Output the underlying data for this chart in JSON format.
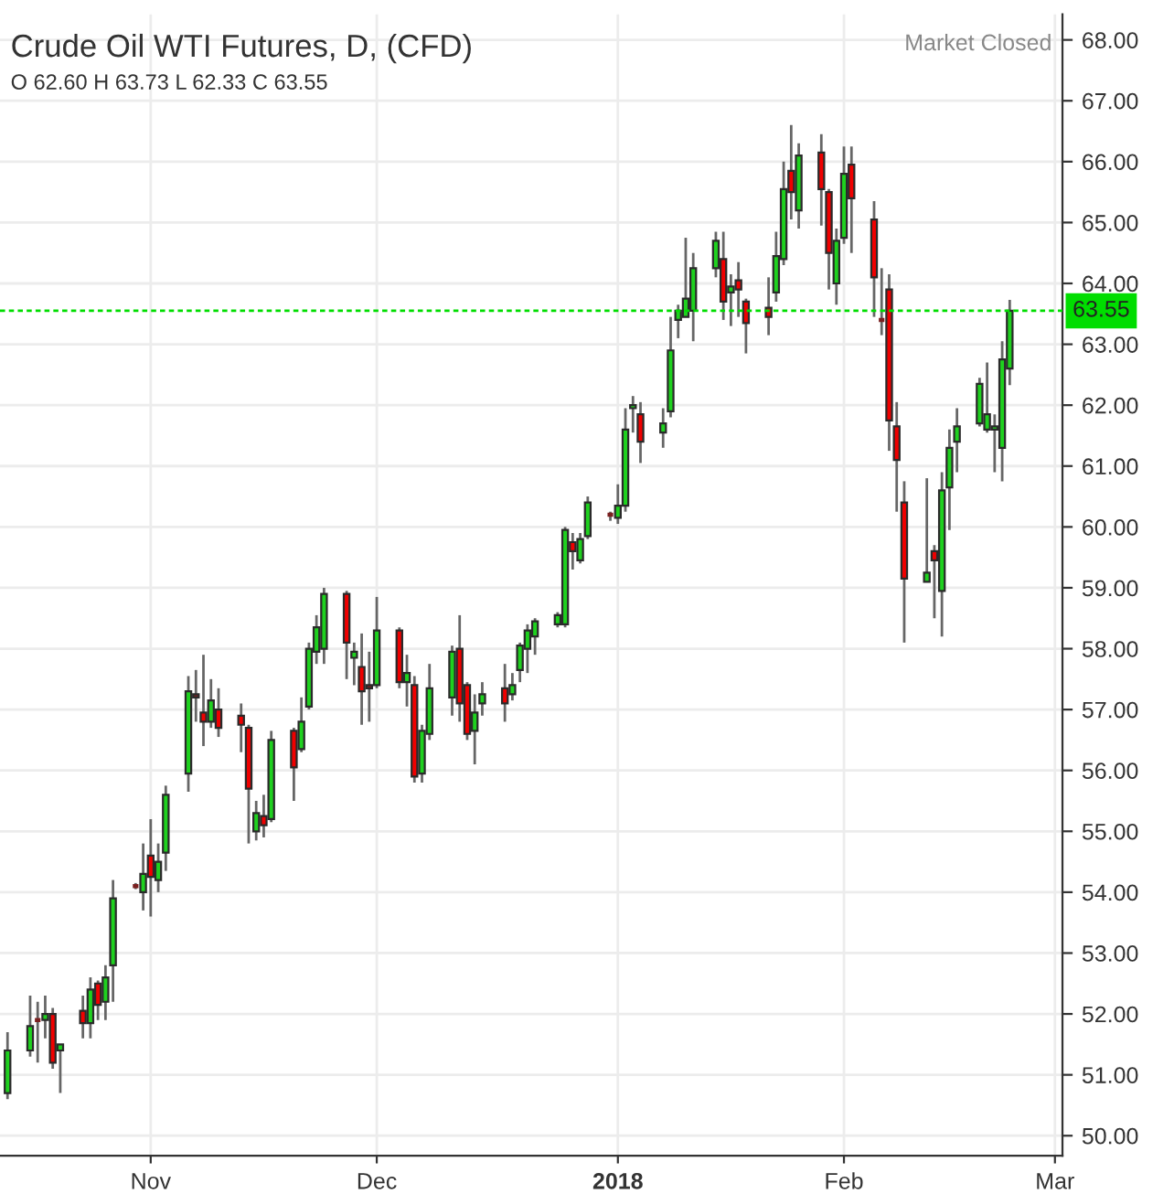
{
  "chart_data": {
    "type": "candlestick",
    "title": "Crude Oil WTI Futures, D, (CFD)",
    "annotations": [
      "O 62.60 H 63.73 L 62.33 C 63.55",
      "Market Closed"
    ],
    "x": [
      "2017-10-13",
      "2017-10-16",
      "2017-10-17",
      "2017-10-18",
      "2017-10-19",
      "2017-10-20",
      "2017-10-23",
      "2017-10-24",
      "2017-10-25",
      "2017-10-26",
      "2017-10-27",
      "2017-10-30",
      "2017-10-31",
      "2017-11-01",
      "2017-11-02",
      "2017-11-03",
      "2017-11-06",
      "2017-11-07",
      "2017-11-08",
      "2017-11-09",
      "2017-11-10",
      "2017-11-13",
      "2017-11-14",
      "2017-11-15",
      "2017-11-16",
      "2017-11-17",
      "2017-11-20",
      "2017-11-21",
      "2017-11-22",
      "2017-11-23",
      "2017-11-24",
      "2017-11-27",
      "2017-11-28",
      "2017-11-29",
      "2017-11-30",
      "2017-12-01",
      "2017-12-04",
      "2017-12-05",
      "2017-12-06",
      "2017-12-07",
      "2017-12-08",
      "2017-12-11",
      "2017-12-12",
      "2017-12-13",
      "2017-12-14",
      "2017-12-15",
      "2017-12-18",
      "2017-12-19",
      "2017-12-20",
      "2017-12-21",
      "2017-12-22",
      "2017-12-25",
      "2017-12-26",
      "2017-12-27",
      "2017-12-28",
      "2017-12-29",
      "2018-01-01",
      "2018-01-02",
      "2018-01-03",
      "2018-01-04",
      "2018-01-05",
      "2018-01-08",
      "2018-01-09",
      "2018-01-10",
      "2018-01-11",
      "2018-01-12",
      "2018-01-15",
      "2018-01-16",
      "2018-01-17",
      "2018-01-18",
      "2018-01-19",
      "2018-01-22",
      "2018-01-23",
      "2018-01-24",
      "2018-01-25",
      "2018-01-26",
      "2018-01-29",
      "2018-01-30",
      "2018-01-31",
      "2018-02-01",
      "2018-02-02",
      "2018-02-05",
      "2018-02-06",
      "2018-02-07",
      "2018-02-08",
      "2018-02-09",
      "2018-02-12",
      "2018-02-13",
      "2018-02-14",
      "2018-02-15",
      "2018-02-16",
      "2018-02-19",
      "2018-02-20",
      "2018-02-21",
      "2018-02-22",
      "2018-02-23"
    ],
    "ohlc": [
      [
        50.7,
        51.7,
        50.6,
        51.4
      ],
      [
        51.4,
        52.3,
        51.3,
        51.8
      ],
      [
        51.9,
        52.2,
        51.2,
        51.9
      ],
      [
        51.9,
        52.3,
        51.6,
        52.0
      ],
      [
        52.0,
        52.1,
        51.1,
        51.2
      ],
      [
        51.4,
        51.5,
        50.7,
        51.5
      ],
      [
        52.05,
        52.3,
        51.6,
        51.85
      ],
      [
        51.85,
        52.6,
        51.6,
        52.4
      ],
      [
        52.5,
        52.55,
        51.9,
        52.15
      ],
      [
        52.2,
        52.8,
        51.9,
        52.6
      ],
      [
        52.8,
        54.2,
        52.2,
        53.9
      ],
      [
        54.1,
        54.15,
        54.05,
        54.1
      ],
      [
        54.0,
        54.8,
        53.7,
        54.3
      ],
      [
        54.6,
        55.2,
        53.6,
        54.25
      ],
      [
        54.2,
        54.8,
        54.0,
        54.5
      ],
      [
        54.65,
        55.75,
        54.35,
        55.6
      ],
      [
        55.95,
        57.55,
        55.65,
        57.3
      ],
      [
        57.25,
        57.65,
        56.8,
        57.2
      ],
      [
        56.95,
        57.9,
        56.4,
        56.8
      ],
      [
        56.8,
        57.5,
        56.7,
        57.15
      ],
      [
        57.0,
        57.35,
        56.55,
        56.7
      ],
      [
        56.9,
        57.1,
        56.3,
        56.75
      ],
      [
        56.7,
        56.75,
        54.8,
        55.7
      ],
      [
        55.0,
        55.5,
        54.85,
        55.3
      ],
      [
        55.25,
        55.6,
        54.9,
        55.1
      ],
      [
        55.2,
        56.65,
        55.15,
        56.5
      ],
      [
        56.65,
        56.7,
        55.5,
        56.05
      ],
      [
        56.35,
        57.2,
        56.3,
        56.8
      ],
      [
        57.05,
        58.1,
        57.0,
        58.0
      ],
      [
        57.95,
        58.55,
        57.75,
        58.35
      ],
      [
        58.0,
        59.0,
        57.75,
        58.9
      ],
      [
        58.9,
        58.95,
        57.5,
        58.1
      ],
      [
        57.85,
        58.1,
        57.4,
        57.95
      ],
      [
        57.7,
        58.25,
        56.75,
        57.3
      ],
      [
        57.4,
        57.95,
        56.8,
        57.35
      ],
      [
        57.4,
        58.85,
        57.35,
        58.3
      ],
      [
        58.3,
        58.35,
        57.35,
        57.45
      ],
      [
        57.45,
        57.9,
        57.05,
        57.6
      ],
      [
        57.4,
        57.55,
        55.8,
        55.9
      ],
      [
        55.95,
        56.75,
        55.8,
        56.65
      ],
      [
        56.6,
        57.75,
        56.5,
        57.35
      ],
      [
        57.2,
        58.05,
        56.9,
        57.95
      ],
      [
        58.0,
        58.55,
        56.8,
        57.1
      ],
      [
        57.4,
        57.45,
        56.5,
        56.6
      ],
      [
        56.65,
        57.25,
        56.1,
        56.95
      ],
      [
        57.1,
        57.45,
        56.9,
        57.25
      ],
      [
        57.35,
        57.75,
        56.8,
        57.1
      ],
      [
        57.25,
        57.6,
        57.15,
        57.4
      ],
      [
        57.65,
        58.1,
        57.45,
        58.05
      ],
      [
        58.0,
        58.4,
        57.6,
        58.3
      ],
      [
        58.2,
        58.5,
        57.9,
        58.45
      ],
      [
        58.4,
        58.6,
        58.35,
        58.55
      ],
      [
        58.4,
        60.0,
        58.35,
        59.95
      ],
      [
        59.75,
        59.9,
        59.3,
        59.6
      ],
      [
        59.45,
        59.9,
        59.4,
        59.8
      ],
      [
        59.85,
        60.5,
        59.8,
        60.4
      ],
      [
        60.2,
        60.25,
        60.1,
        60.2
      ],
      [
        60.15,
        60.7,
        60.05,
        60.35
      ],
      [
        60.35,
        61.95,
        60.25,
        61.6
      ],
      [
        61.95,
        62.15,
        61.55,
        62.0
      ],
      [
        61.85,
        62.05,
        61.05,
        61.4
      ],
      [
        61.55,
        61.95,
        61.3,
        61.7
      ],
      [
        61.9,
        63.45,
        61.8,
        62.9
      ],
      [
        63.4,
        63.65,
        63.1,
        63.55
      ],
      [
        63.45,
        64.75,
        63.45,
        63.75
      ],
      [
        63.55,
        64.5,
        63.05,
        64.25
      ],
      [
        64.25,
        64.85,
        64.1,
        64.7
      ],
      [
        64.4,
        64.85,
        63.4,
        63.7
      ],
      [
        63.85,
        64.15,
        63.3,
        63.95
      ],
      [
        64.05,
        64.35,
        63.45,
        63.9
      ],
      [
        63.7,
        63.75,
        62.85,
        63.35
      ],
      [
        63.6,
        64.1,
        63.15,
        63.45
      ],
      [
        63.85,
        64.85,
        63.7,
        64.45
      ],
      [
        64.4,
        66.0,
        64.3,
        65.55
      ],
      [
        65.85,
        66.6,
        65.05,
        65.5
      ],
      [
        65.2,
        66.3,
        64.9,
        66.1
      ],
      [
        66.15,
        66.45,
        64.95,
        65.55
      ],
      [
        65.5,
        65.55,
        63.9,
        64.5
      ],
      [
        64.0,
        64.9,
        63.65,
        64.7
      ],
      [
        64.75,
        66.25,
        64.65,
        65.8
      ],
      [
        65.95,
        66.25,
        64.5,
        65.4
      ],
      [
        65.05,
        65.35,
        63.45,
        64.1
      ],
      [
        63.4,
        64.25,
        63.15,
        63.4
      ],
      [
        63.9,
        64.15,
        61.25,
        61.75
      ],
      [
        61.65,
        62.05,
        60.25,
        61.1
      ],
      [
        60.4,
        60.75,
        58.1,
        59.15
      ],
      [
        59.1,
        60.8,
        59.1,
        59.25
      ],
      [
        59.6,
        59.7,
        58.5,
        59.45
      ],
      [
        58.95,
        60.9,
        58.2,
        60.6
      ],
      [
        60.65,
        61.6,
        59.95,
        61.3
      ],
      [
        61.4,
        61.95,
        60.9,
        61.65
      ],
      [
        61.7,
        62.45,
        61.65,
        62.35
      ],
      [
        61.6,
        62.7,
        61.55,
        61.85
      ],
      [
        61.6,
        61.85,
        60.9,
        61.65
      ],
      [
        61.3,
        63.05,
        60.75,
        62.75
      ],
      [
        62.6,
        63.73,
        62.33,
        63.55
      ]
    ],
    "colors": [
      "#1fd11f",
      "#1fd11f",
      "#7b2020",
      "#1fd11f",
      "#f00000",
      "#1fd11f",
      "#f00000",
      "#1fd11f",
      "#f00000",
      "#1fd11f",
      "#1fd11f",
      "#7b2020",
      "#1fd11f",
      "#f00000",
      "#1fd11f",
      "#1fd11f",
      "#1fd11f",
      "#7b2020",
      "#f00000",
      "#1fd11f",
      "#f00000",
      "#f00000",
      "#f00000",
      "#1fd11f",
      "#f00000",
      "#1fd11f",
      "#f00000",
      "#1fd11f",
      "#1fd11f",
      "#1fd11f",
      "#1fd11f",
      "#f00000",
      "#1fd11f",
      "#f00000",
      "#7b2020",
      "#1fd11f",
      "#f00000",
      "#1fd11f",
      "#f00000",
      "#1fd11f",
      "#1fd11f",
      "#1fd11f",
      "#f00000",
      "#f00000",
      "#1fd11f",
      "#1fd11f",
      "#f00000",
      "#1fd11f",
      "#1fd11f",
      "#1fd11f",
      "#1fd11f",
      "#1fd11f",
      "#1fd11f",
      "#f00000",
      "#1fd11f",
      "#1fd11f",
      "#7b2020",
      "#1fd11f",
      "#1fd11f",
      "#1fd11f",
      "#f00000",
      "#1fd11f",
      "#1fd11f",
      "#1fd11f",
      "#1fd11f",
      "#1fd11f",
      "#1fd11f",
      "#f00000",
      "#1fd11f",
      "#f00000",
      "#f00000",
      "#f00000",
      "#1fd11f",
      "#1fd11f",
      "#f00000",
      "#1fd11f",
      "#f00000",
      "#f00000",
      "#1fd11f",
      "#1fd11f",
      "#f00000",
      "#f00000",
      "#7b2020",
      "#f00000",
      "#f00000",
      "#f00000",
      "#1fd11f",
      "#f00000",
      "#1fd11f",
      "#1fd11f",
      "#1fd11f",
      "#1fd11f",
      "#1fd11f",
      "#1fd11f",
      "#1fd11f",
      "#1fd11f"
    ],
    "xlim": [
      "2017-10-12",
      "2018-03-02"
    ],
    "xticks": [
      {
        "value": "2017-11-01",
        "label": "Nov"
      },
      {
        "value": "2017-12-01",
        "label": "Dec"
      },
      {
        "value": "2018-01-02",
        "label": "2018"
      },
      {
        "value": "2018-02-01",
        "label": "Feb"
      },
      {
        "value": "2018-03-01",
        "label": "Mar"
      }
    ],
    "ylim": [
      49.67,
      68.42
    ],
    "yticks": [
      {
        "value": 50,
        "label": "50.00"
      },
      {
        "value": 51,
        "label": "51.00"
      },
      {
        "value": 52,
        "label": "52.00"
      },
      {
        "value": 53,
        "label": "53.00"
      },
      {
        "value": 54,
        "label": "54.00"
      },
      {
        "value": 55,
        "label": "55.00"
      },
      {
        "value": 56,
        "label": "56.00"
      },
      {
        "value": 57,
        "label": "57.00"
      },
      {
        "value": 58,
        "label": "58.00"
      },
      {
        "value": 59,
        "label": "59.00"
      },
      {
        "value": 60,
        "label": "60.00"
      },
      {
        "value": 61,
        "label": "61.00"
      },
      {
        "value": 62,
        "label": "62.00"
      },
      {
        "value": 63,
        "label": "63.00"
      },
      {
        "value": 64,
        "label": "64.00"
      },
      {
        "value": 65,
        "label": "65.00"
      },
      {
        "value": 66,
        "label": "66.00"
      },
      {
        "value": 67,
        "label": "67.00"
      },
      {
        "value": 68,
        "label": "68.00"
      }
    ],
    "ref_lines": [
      {
        "axis": "y",
        "value": 63.55,
        "label": "63.55",
        "color": "#00dd00",
        "line_style": "dotted"
      }
    ],
    "grid": true
  }
}
